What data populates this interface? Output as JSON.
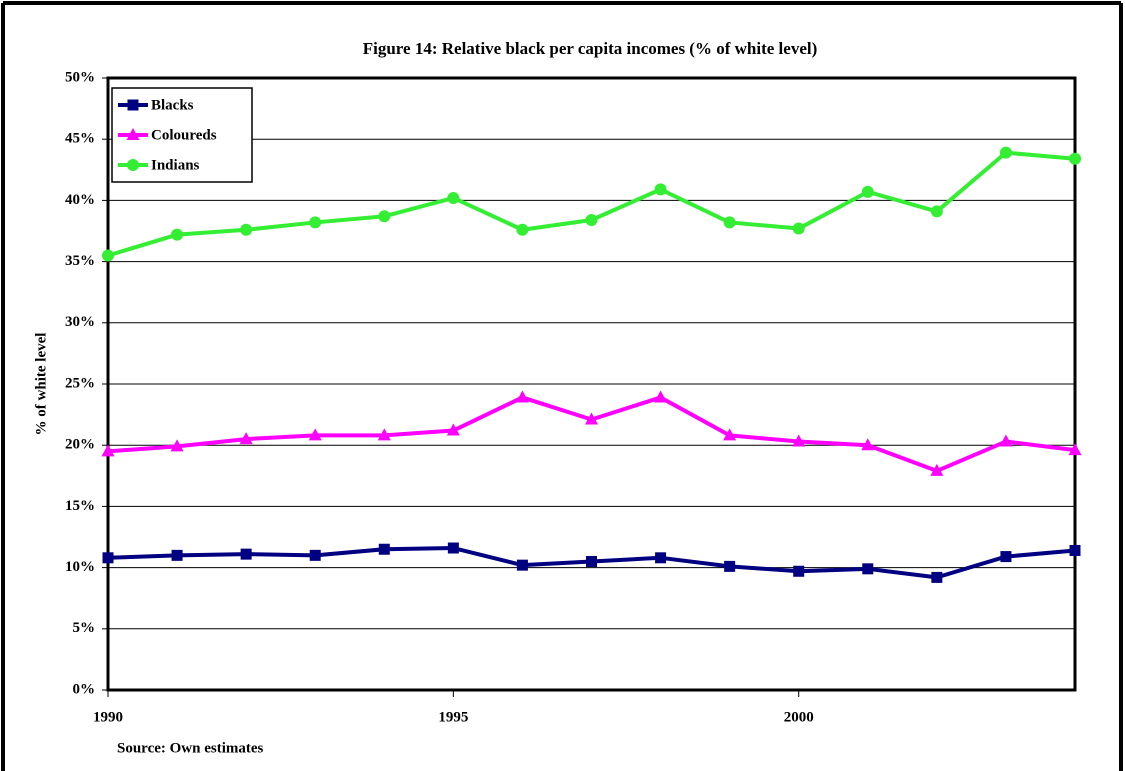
{
  "chart_data": {
    "type": "line",
    "title": "Figure 14: Relative black per capita incomes (% of white level)",
    "y_label": "% of white level",
    "source": "Source: Own estimates",
    "x": [
      1990,
      1991,
      1992,
      1993,
      1994,
      1995,
      1996,
      1997,
      1998,
      1999,
      2000,
      2001,
      2002,
      2003,
      2004
    ],
    "xlim": [
      1990,
      2004
    ],
    "xticks": [
      1990,
      1995,
      2000
    ],
    "ylim": [
      0,
      50
    ],
    "yticks": [
      {
        "value": 0,
        "label": "0%"
      },
      {
        "value": 5,
        "label": "5%"
      },
      {
        "value": 10,
        "label": "10%"
      },
      {
        "value": 15,
        "label": "15%"
      },
      {
        "value": 20,
        "label": "20%"
      },
      {
        "value": 25,
        "label": "25%"
      },
      {
        "value": 30,
        "label": "30%"
      },
      {
        "value": 35,
        "label": "35%"
      },
      {
        "value": 40,
        "label": "40%"
      },
      {
        "value": 45,
        "label": "45%"
      },
      {
        "value": 50,
        "label": "50%"
      }
    ],
    "grid": true,
    "legend": "top-left",
    "series": [
      {
        "name": "Blacks",
        "color": "#000080",
        "marker": "square",
        "values": [
          10.8,
          11.0,
          11.1,
          11.0,
          11.5,
          11.6,
          10.2,
          10.5,
          10.8,
          10.1,
          9.7,
          9.9,
          9.2,
          10.9,
          11.4
        ]
      },
      {
        "name": "Coloureds",
        "color": "#ff00ff",
        "marker": "triangle",
        "values": [
          19.5,
          19.9,
          20.5,
          20.8,
          20.8,
          21.2,
          23.9,
          22.1,
          23.9,
          20.8,
          20.3,
          20.0,
          17.9,
          20.3,
          19.6
        ]
      },
      {
        "name": "Indians",
        "color": "#33ee33",
        "marker": "circle",
        "values": [
          35.5,
          37.2,
          37.6,
          38.2,
          38.7,
          40.2,
          37.6,
          38.4,
          40.9,
          38.2,
          37.7,
          40.7,
          39.1,
          43.9,
          43.4
        ]
      }
    ]
  }
}
